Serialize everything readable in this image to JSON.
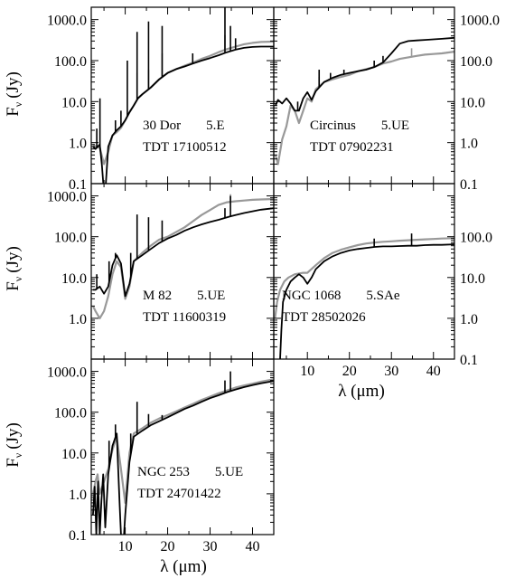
{
  "figure": {
    "y_axis_title_main": "F",
    "y_axis_title_sub": "ν",
    "y_axis_title_unit": "(Jy)",
    "x_axis_title": "λ (μm)"
  },
  "chart_data": [
    {
      "type": "line",
      "panel": "30 Dor",
      "label_line1_name": "30 Dor",
      "label_line1_class": "5.E",
      "label_line2": "TDT 17100512",
      "xlim": [
        2,
        45
      ],
      "ylim": [
        0.1,
        2000
      ],
      "yscale": "log",
      "x_ticks": [
        10,
        20,
        30,
        40
      ],
      "x_ticklabels_shown": false,
      "y_ticks": [
        0.1,
        1.0,
        10.0,
        100.0,
        1000.0
      ],
      "y_ticklabels": [
        "0.1",
        "1.0",
        "10.0",
        "100.0",
        "1000.0"
      ],
      "y_labels_side": "left",
      "series": [
        {
          "color": "#999999",
          "x": [
            2.4,
            3,
            4,
            5,
            6,
            7,
            8,
            9,
            10,
            11,
            12,
            13,
            14,
            16,
            18,
            20,
            22,
            24,
            26,
            28,
            30,
            32,
            34,
            36,
            38,
            40,
            42,
            45
          ],
          "y": [
            0.9,
            0.8,
            0.75,
            0.3,
            0.6,
            1.5,
            1.8,
            2.3,
            3.5,
            5.5,
            8,
            12,
            15,
            22,
            35,
            50,
            62,
            75,
            90,
            110,
            130,
            160,
            190,
            220,
            250,
            270,
            285,
            290
          ],
          "lines": [
            [
              12.8,
              50
            ],
            [
              15.5,
              60
            ],
            [
              18.7,
              150
            ],
            [
              33.5,
              420
            ]
          ]
        },
        {
          "color": "#000000",
          "x": [
            2.4,
            3,
            4,
            4.5,
            5,
            5.3,
            6,
            7,
            8,
            9,
            10,
            11,
            12,
            13,
            14,
            16,
            18,
            20,
            22,
            24,
            26,
            28,
            30,
            32,
            34,
            36,
            38,
            40,
            42,
            45
          ],
          "y": [
            0.8,
            0.7,
            0.9,
            0.3,
            0.06,
            0.06,
            0.8,
            1.5,
            2,
            2.5,
            3.5,
            5.5,
            8,
            12,
            15,
            22,
            35,
            50,
            62,
            72,
            85,
            100,
            115,
            135,
            160,
            185,
            205,
            215,
            220,
            220
          ],
          "lines": [
            [
              3.3,
              2.2
            ],
            [
              4.05,
              12
            ],
            [
              7.7,
              3.5
            ],
            [
              9.0,
              6
            ],
            [
              10.5,
              100
            ],
            [
              12.8,
              500
            ],
            [
              15.5,
              900
            ],
            [
              18.7,
              700
            ],
            [
              25.9,
              150
            ],
            [
              33.5,
              2000
            ],
            [
              34.8,
              700
            ],
            [
              36,
              350
            ]
          ]
        }
      ]
    },
    {
      "type": "line",
      "panel": "Circinus",
      "label_line1_name": "Circinus",
      "label_line1_class": "5.UE",
      "label_line2": "TDT  07902231",
      "xlim": [
        2,
        45
      ],
      "ylim": [
        0.1,
        2000
      ],
      "yscale": "log",
      "x_ticks": [
        10,
        20,
        30,
        40
      ],
      "x_ticklabels_shown": false,
      "y_ticks": [
        0.1,
        1.0,
        10.0,
        100.0,
        1000.0
      ],
      "y_ticklabels": [
        "0.1",
        "1.0",
        "10.0",
        "100.0",
        "1000.0"
      ],
      "y_labels_side": "right",
      "series": [
        {
          "color": "#999999",
          "x": [
            2.4,
            3,
            4,
            5,
            6,
            7,
            8,
            9,
            10,
            11,
            12,
            14,
            16,
            18,
            20,
            22,
            24,
            26,
            28,
            30,
            32,
            34,
            36,
            38,
            40,
            42,
            45
          ],
          "y": [
            0.5,
            0.3,
            1.2,
            2.5,
            8,
            6,
            3,
            6,
            12,
            10,
            20,
            30,
            35,
            40,
            45,
            55,
            62,
            70,
            85,
            95,
            110,
            120,
            130,
            140,
            145,
            150,
            165
          ],
          "lines": [
            [
              12.8,
              40
            ],
            [
              34.8,
              200
            ]
          ]
        },
        {
          "color": "#000000",
          "x": [
            2.4,
            3,
            4,
            5,
            6,
            7,
            8,
            9,
            10,
            11,
            12,
            14,
            16,
            18,
            20,
            22,
            24,
            26,
            28,
            30,
            32,
            34,
            36,
            38,
            40,
            42,
            45
          ],
          "y": [
            8,
            11,
            9,
            12,
            9,
            6,
            6,
            12,
            17,
            11,
            18,
            30,
            38,
            45,
            50,
            55,
            60,
            70,
            90,
            150,
            260,
            300,
            310,
            320,
            330,
            340,
            360
          ],
          "lines": [
            [
              7.7,
              10
            ],
            [
              12.8,
              60
            ],
            [
              15.5,
              50
            ],
            [
              18.7,
              60
            ],
            [
              25.9,
              100
            ],
            [
              28,
              130
            ]
          ]
        }
      ]
    },
    {
      "type": "line",
      "panel": "M 82",
      "label_line1_name": "M 82",
      "label_line1_class": "5.UE",
      "label_line2": "TDT 11600319",
      "xlim": [
        2,
        45
      ],
      "ylim": [
        0.1,
        2000
      ],
      "yscale": "log",
      "x_ticks": [
        10,
        20,
        30,
        40
      ],
      "x_ticklabels_shown": false,
      "y_ticks": [
        1.0,
        10.0,
        100.0,
        1000.0
      ],
      "y_ticklabels": [
        "1.0",
        "10.0",
        "100.0",
        "1000.0"
      ],
      "y_labels_side": "left",
      "series": [
        {
          "color": "#999999",
          "x": [
            2.4,
            3,
            4,
            5,
            6,
            7,
            8,
            9,
            10,
            11,
            12,
            14,
            16,
            18,
            20,
            22,
            24,
            26,
            28,
            30,
            32,
            34,
            36,
            38,
            40,
            42,
            45
          ],
          "y": [
            2,
            1.5,
            1,
            1.5,
            3.5,
            12,
            25,
            18,
            3,
            6,
            25,
            40,
            60,
            85,
            100,
            130,
            170,
            240,
            340,
            450,
            600,
            700,
            740,
            770,
            800,
            820,
            840
          ],
          "lines": [
            [
              34.8,
              1100
            ]
          ]
        },
        {
          "color": "#000000",
          "x": [
            2.4,
            3,
            4,
            5,
            6,
            7,
            8,
            9,
            10,
            11,
            12,
            14,
            16,
            18,
            20,
            22,
            24,
            26,
            28,
            30,
            32,
            34,
            36,
            38,
            40,
            42,
            45
          ],
          "y": [
            5,
            5,
            6,
            4,
            6,
            20,
            35,
            22,
            3.5,
            7,
            25,
            35,
            50,
            70,
            90,
            110,
            140,
            170,
            200,
            230,
            260,
            300,
            340,
            380,
            420,
            460,
            500
          ],
          "lines": [
            [
              3.3,
              12
            ],
            [
              6.2,
              25
            ],
            [
              7.7,
              40
            ],
            [
              11.3,
              40
            ],
            [
              12.8,
              350
            ],
            [
              15.5,
              300
            ],
            [
              18.7,
              250
            ],
            [
              33.5,
              500
            ],
            [
              34.8,
              1000
            ]
          ]
        }
      ]
    },
    {
      "type": "line",
      "panel": "NGC 1068",
      "label_line1_name": "NGC 1068",
      "label_line1_class": "5.SAe",
      "label_line2": "TDT 28502026",
      "xlim": [
        2,
        45
      ],
      "ylim": [
        0.1,
        2000
      ],
      "yscale": "log",
      "x_ticks": [
        10,
        20,
        30,
        40
      ],
      "x_ticklabels": [
        "10",
        "20",
        "30",
        "40"
      ],
      "y_ticks": [
        0.1,
        1.0,
        10.0,
        100.0,
        1000.0
      ],
      "y_ticklabels": [
        "0.1",
        "1.0",
        "10.0",
        "100.0"
      ],
      "y_labels_side": "right",
      "series": [
        {
          "color": "#999999",
          "x": [
            2.3,
            2.8,
            3.5,
            4.5,
            5.5,
            7,
            9,
            10,
            12,
            14,
            16,
            18,
            20,
            22,
            24,
            26,
            28,
            30,
            32,
            34,
            36,
            38,
            40,
            42,
            45
          ],
          "y": [
            1,
            2.5,
            5,
            8,
            10,
            12,
            13,
            13,
            20,
            30,
            40,
            48,
            55,
            62,
            68,
            72,
            75,
            77,
            80,
            82,
            84,
            86,
            88,
            90,
            92
          ],
          "lines": []
        },
        {
          "color": "#000000",
          "x": [
            3.5,
            3.8,
            4.2,
            5,
            6,
            7,
            8,
            9,
            10,
            11,
            12,
            14,
            16,
            18,
            20,
            22,
            24,
            26,
            28,
            30,
            32,
            34,
            36,
            38,
            40,
            42,
            45
          ],
          "y": [
            0.1,
            0.5,
            2.5,
            5,
            8,
            10,
            12,
            10,
            7,
            10,
            16,
            25,
            33,
            40,
            46,
            50,
            53,
            56,
            58,
            58,
            59,
            60,
            60,
            62,
            63,
            63,
            65
          ],
          "lines": [
            [
              25.9,
              90
            ],
            [
              34.8,
              120
            ]
          ]
        }
      ]
    },
    {
      "type": "line",
      "panel": "NGC 253",
      "label_line1_name": "NGC 253",
      "label_line1_class": "5.UE",
      "label_line2": "TDT 24701422",
      "xlim": [
        2,
        45
      ],
      "ylim": [
        0.1,
        2000
      ],
      "yscale": "log",
      "x_ticks": [
        10,
        20,
        30,
        40
      ],
      "x_ticklabels": [
        "10",
        "20",
        "30",
        "40"
      ],
      "y_ticks": [
        0.1,
        1.0,
        10.0,
        100.0,
        1000.0
      ],
      "y_ticklabels": [
        "0.1",
        "1.0",
        "10.0",
        "100.0",
        "1000.0"
      ],
      "y_labels_side": "left",
      "series": [
        {
          "color": "#999999",
          "x": [
            2.4,
            3,
            3.5,
            4,
            5,
            6,
            7,
            8,
            9,
            10,
            11,
            12,
            14,
            16,
            18,
            20,
            22,
            24,
            26,
            28,
            30,
            32,
            34,
            36,
            38,
            40,
            42,
            45
          ],
          "y": [
            1,
            2,
            3,
            1,
            2,
            4,
            12,
            25,
            4,
            0.6,
            10,
            30,
            40,
            55,
            70,
            85,
            105,
            130,
            160,
            200,
            240,
            290,
            340,
            400,
            450,
            500,
            560,
            640
          ],
          "lines": []
        },
        {
          "color": "#000000",
          "x": [
            2.4,
            2.8,
            3.2,
            3.6,
            4.0,
            4.4,
            4.8,
            5.3,
            6,
            7,
            8,
            8.7,
            9.3,
            10,
            11,
            12,
            14,
            16,
            18,
            20,
            22,
            24,
            26,
            28,
            30,
            32,
            34,
            36,
            38,
            40,
            42,
            45
          ],
          "y": [
            0.3,
            1.5,
            0.1,
            2,
            0.1,
            0.7,
            3,
            0.15,
            3,
            15,
            30,
            0.5,
            0.02,
            0.3,
            6,
            25,
            35,
            48,
            60,
            75,
            95,
            120,
            145,
            180,
            220,
            260,
            310,
            360,
            410,
            460,
            510,
            580
          ],
          "lines": [
            [
              6.2,
              20
            ],
            [
              7.7,
              50
            ],
            [
              11.3,
              30
            ],
            [
              12.8,
              180
            ],
            [
              15.5,
              90
            ],
            [
              18.7,
              85
            ],
            [
              33.5,
              600
            ],
            [
              34.8,
              1000
            ]
          ]
        }
      ]
    }
  ]
}
